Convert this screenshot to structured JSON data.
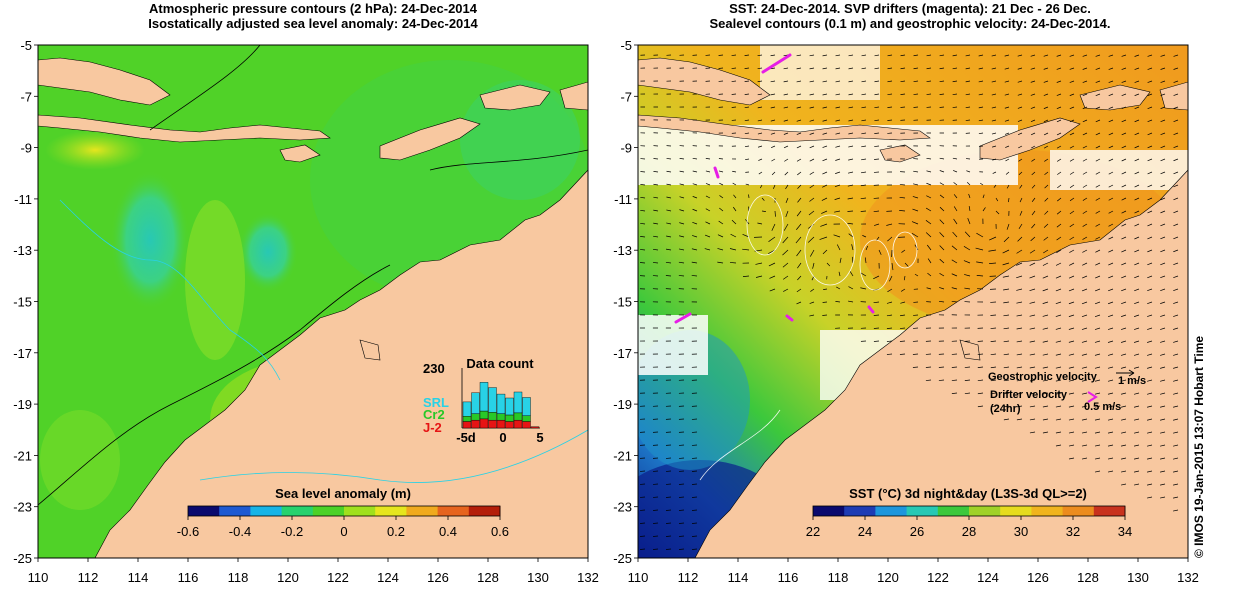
{
  "left_panel": {
    "title_line1": "Atmospheric pressure contours (2 hPa): 24-Dec-2014",
    "title_line2": "Isostatically adjusted sea level anomaly: 24-Dec-2014",
    "colorbar": {
      "label": "Sea level anomaly (m)",
      "ticks": [
        "-0.6",
        "-0.4",
        "-0.2",
        "0",
        "0.2",
        "0.4",
        "0.6"
      ],
      "colors": [
        "#0a0a6e",
        "#1e5ad2",
        "#18b4e6",
        "#28d26e",
        "#4cd228",
        "#a0e01e",
        "#e6e61e",
        "#f0aa1e",
        "#e6641e",
        "#b41e0a"
      ]
    },
    "inset": {
      "title": "Data count",
      "ymax_label": "230",
      "x_labels": [
        "-5d",
        "0",
        "5"
      ],
      "legend": [
        {
          "name": "SRL",
          "color": "#28d2e6"
        },
        {
          "name": "Cr2",
          "color": "#28c828"
        },
        {
          "name": "J-2",
          "color": "#e61414"
        }
      ],
      "bars": [
        {
          "srl": 55,
          "cr2": 20,
          "j2": 25
        },
        {
          "srl": 80,
          "cr2": 25,
          "j2": 30
        },
        {
          "srl": 110,
          "cr2": 30,
          "j2": 35
        },
        {
          "srl": 95,
          "cr2": 30,
          "j2": 30
        },
        {
          "srl": 75,
          "cr2": 25,
          "j2": 30
        },
        {
          "srl": 65,
          "cr2": 25,
          "j2": 25
        },
        {
          "srl": 80,
          "cr2": 28,
          "j2": 30
        },
        {
          "srl": 70,
          "cr2": 22,
          "j2": 25
        },
        {
          "srl": 0,
          "cr2": 0,
          "j2": 5
        }
      ]
    }
  },
  "right_panel": {
    "title_line1": "SST: 24-Dec-2014. SVP drifters (magenta): 21 Dec - 26 Dec.",
    "title_line2": "Sealevel contours (0.1 m) and geostrophic velocity: 24-Dec-2014.",
    "colorbar": {
      "label": "SST (°C) 3d night&day (L3S-3d QL>=2)",
      "ticks": [
        "22",
        "24",
        "26",
        "28",
        "30",
        "32",
        "34"
      ],
      "colors": [
        "#0a0a6e",
        "#1e3cb4",
        "#1e96dc",
        "#28c8b4",
        "#3cc83c",
        "#a0d228",
        "#e6dc1e",
        "#f0b41e",
        "#ec8c1e",
        "#c8321e"
      ]
    },
    "legend": {
      "geo_label": "Geostrophic velocity",
      "geo_scale": "1 m/s",
      "drifter_label": "Drifter velocity",
      "drifter_sub": "(24hr)",
      "drifter_scale": "0.5 m/s"
    }
  },
  "axes": {
    "y_labels": [
      "-5",
      "-7",
      "-9",
      "-11",
      "-13",
      "-15",
      "-17",
      "-19",
      "-21",
      "-23",
      "-25"
    ],
    "x_labels": [
      "110",
      "112",
      "114",
      "116",
      "118",
      "120",
      "122",
      "124",
      "126",
      "128",
      "130",
      "132"
    ]
  },
  "colors": {
    "land": "#f8c8a0",
    "ocean_green": "#50d228",
    "sst_orange": "#f0a01e",
    "drifter": "#e61ee6"
  },
  "credit": "© IMOS 19-Jan-2015 13:07 Hobart Time"
}
